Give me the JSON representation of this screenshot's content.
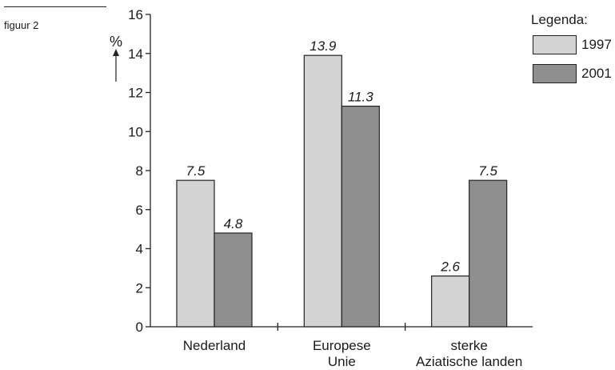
{
  "figure_label": "figuur 2",
  "chart_data": {
    "type": "bar",
    "categories": [
      [
        "Nederland"
      ],
      [
        "Europese",
        "Unie"
      ],
      [
        "sterke",
        "Aziatische landen"
      ]
    ],
    "series": [
      {
        "name": "1997",
        "values": [
          7.5,
          13.9,
          2.6
        ],
        "labels": [
          "7.5",
          "13.9",
          "2.6"
        ],
        "color": "#d3d3d3"
      },
      {
        "name": "2001",
        "values": [
          4.8,
          11.3,
          7.5
        ],
        "labels": [
          "4.8",
          "11.3",
          "7.5"
        ],
        "color": "#8f8f8f"
      }
    ],
    "ylabel": "%",
    "ylim": [
      0,
      16
    ],
    "yticks": [
      0,
      2,
      4,
      6,
      8,
      10,
      12,
      14,
      16
    ],
    "ytick_labels": [
      "0",
      "2",
      "4",
      "6",
      "8",
      "10",
      "12",
      "14",
      "16"
    ],
    "legend": {
      "title": "Legenda:",
      "position": "top-right"
    },
    "grid": false
  }
}
